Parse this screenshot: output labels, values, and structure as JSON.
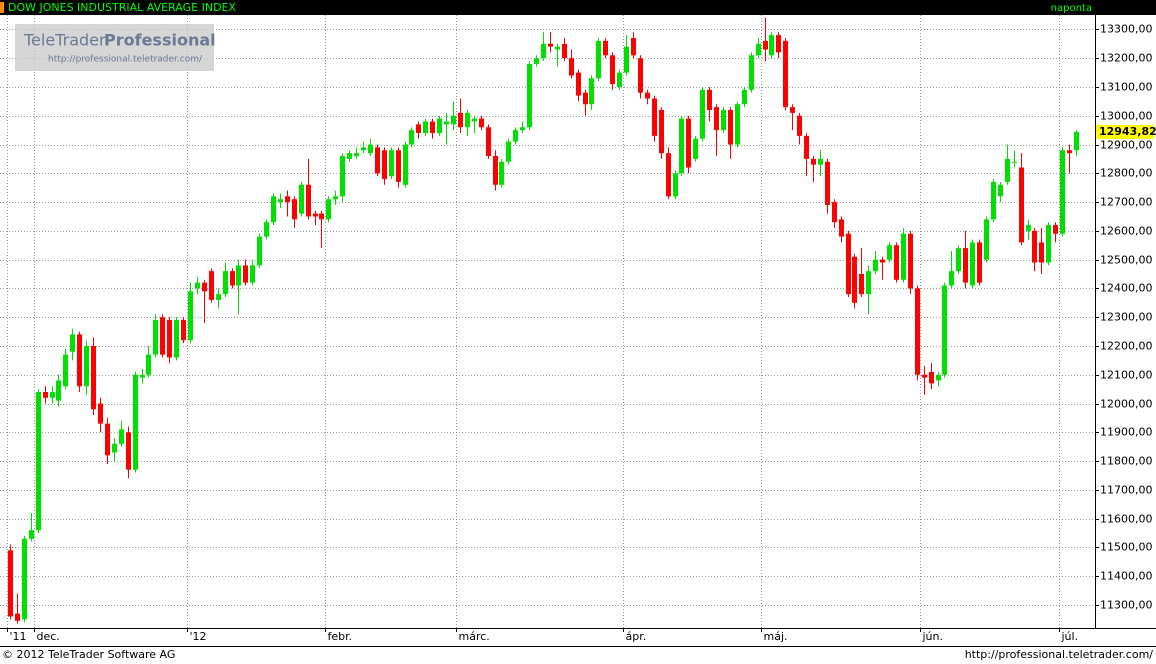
{
  "page": {
    "logo_brand": "TeleTrader",
    "logo_product": "Professional",
    "logo_url": "http://professional.teletrader.com/",
    "footer_left": "© 2012 TeleTrader Software AG",
    "footer_right": "http://professional.teletrader.com/"
  },
  "chart_data": {
    "type": "candlestick",
    "title": "DOW JONES INDUSTRIAL AVERAGE INDEX",
    "frequency": "naponta",
    "up_color": "#00e000",
    "down_color": "#ff0000",
    "grid": true,
    "ylim": [
      11220,
      13350
    ],
    "yticks": [
      {
        "value": 11300,
        "label": "11300,00"
      },
      {
        "value": 11400,
        "label": "11400,00"
      },
      {
        "value": 11500,
        "label": "11500,00"
      },
      {
        "value": 11600,
        "label": "11600,00"
      },
      {
        "value": 11700,
        "label": "11700,00"
      },
      {
        "value": 11800,
        "label": "11800,00"
      },
      {
        "value": 11900,
        "label": "11900,00"
      },
      {
        "value": 12000,
        "label": "12000,00"
      },
      {
        "value": 12100,
        "label": "12100,00"
      },
      {
        "value": 12200,
        "label": "12200,00"
      },
      {
        "value": 12300,
        "label": "12300,00"
      },
      {
        "value": 12400,
        "label": "12400,00"
      },
      {
        "value": 12500,
        "label": "12500,00"
      },
      {
        "value": 12600,
        "label": "12600,00"
      },
      {
        "value": 12700,
        "label": "12700,00"
      },
      {
        "value": 12800,
        "label": "12800,00"
      },
      {
        "value": 12900,
        "label": "12900,00"
      },
      {
        "value": 13000,
        "label": "13000,00"
      },
      {
        "value": 13100,
        "label": "13100,00"
      },
      {
        "value": 13200,
        "label": "13200,00"
      },
      {
        "value": 13300,
        "label": "13300,00"
      }
    ],
    "last_label": "12943,82",
    "categories": [
      "'11",
      null,
      null,
      null,
      "dec.",
      null,
      null,
      null,
      null,
      null,
      null,
      null,
      null,
      null,
      null,
      null,
      null,
      null,
      null,
      null,
      null,
      null,
      null,
      null,
      null,
      null,
      "'12",
      null,
      null,
      null,
      null,
      null,
      null,
      null,
      null,
      null,
      null,
      null,
      null,
      null,
      null,
      null,
      null,
      null,
      null,
      null,
      "febr.",
      null,
      null,
      null,
      null,
      null,
      null,
      null,
      null,
      null,
      null,
      null,
      null,
      null,
      null,
      null,
      null,
      null,
      null,
      "márc.",
      null,
      null,
      null,
      null,
      null,
      null,
      null,
      null,
      null,
      null,
      null,
      null,
      null,
      null,
      null,
      null,
      null,
      null,
      null,
      null,
      null,
      null,
      null,
      "ápr.",
      null,
      null,
      null,
      null,
      null,
      null,
      null,
      null,
      null,
      null,
      null,
      null,
      null,
      null,
      null,
      null,
      null,
      null,
      null,
      "máj.",
      null,
      null,
      null,
      null,
      null,
      null,
      null,
      null,
      null,
      null,
      null,
      null,
      null,
      null,
      null,
      null,
      null,
      null,
      null,
      null,
      null,
      null,
      "jún.",
      null,
      null,
      null,
      null,
      null,
      null,
      null,
      null,
      null,
      null,
      null,
      null,
      null,
      null,
      null,
      null,
      null,
      null,
      null,
      "júl.",
      null,
      null
    ],
    "candles": [
      [
        11490,
        11510,
        11250,
        11260
      ],
      [
        11270,
        11340,
        11235,
        11245
      ],
      [
        11250,
        11540,
        11240,
        11530
      ],
      [
        11530,
        11620,
        11520,
        11560
      ],
      [
        11560,
        12050,
        11550,
        12040
      ],
      [
        12040,
        12060,
        12000,
        12020
      ],
      [
        12020,
        12060,
        12000,
        12040
      ],
      [
        12010,
        12100,
        11990,
        12080
      ],
      [
        12060,
        12190,
        12050,
        12170
      ],
      [
        12180,
        12260,
        12150,
        12240
      ],
      [
        12240,
        12250,
        12040,
        12060
      ],
      [
        12060,
        12220,
        12030,
        12200
      ],
      [
        12200,
        12230,
        11960,
        11980
      ],
      [
        12000,
        12020,
        11900,
        11930
      ],
      [
        11930,
        11950,
        11790,
        11820
      ],
      [
        11830,
        11880,
        11800,
        11860
      ],
      [
        11860,
        11940,
        11850,
        11910
      ],
      [
        11900,
        11920,
        11740,
        11770
      ],
      [
        11770,
        12110,
        11760,
        12100
      ],
      [
        12090,
        12120,
        12070,
        12100
      ],
      [
        12100,
        12200,
        12090,
        12170
      ],
      [
        12170,
        12310,
        12160,
        12290
      ],
      [
        12300,
        12310,
        12160,
        12170
      ],
      [
        12290,
        12300,
        12140,
        12160
      ],
      [
        12160,
        12300,
        12150,
        12290
      ],
      [
        12290,
        12300,
        12210,
        12220
      ],
      [
        12220,
        12420,
        12210,
        12390
      ],
      [
        12400,
        12440,
        12380,
        12420
      ],
      [
        12420,
        12430,
        12280,
        12390
      ],
      [
        12460,
        12470,
        12350,
        12360
      ],
      [
        12360,
        12400,
        12330,
        12380
      ],
      [
        12380,
        12490,
        12370,
        12460
      ],
      [
        12460,
        12470,
        12400,
        12410
      ],
      [
        12410,
        12500,
        12310,
        12480
      ],
      [
        12480,
        12500,
        12410,
        12420
      ],
      [
        12420,
        12500,
        12410,
        12480
      ],
      [
        12480,
        12590,
        12470,
        12580
      ],
      [
        12580,
        12640,
        12570,
        12630
      ],
      [
        12630,
        12730,
        12620,
        12720
      ],
      [
        12700,
        12730,
        12680,
        12710
      ],
      [
        12720,
        12740,
        12650,
        12700
      ],
      [
        12710,
        12720,
        12610,
        12640
      ],
      [
        12660,
        12770,
        12650,
        12760
      ],
      [
        12760,
        12850,
        12640,
        12650
      ],
      [
        12660,
        12670,
        12620,
        12650
      ],
      [
        12660,
        12670,
        12540,
        12640
      ],
      [
        12640,
        12720,
        12630,
        12710
      ],
      [
        12710,
        12740,
        12690,
        12720
      ],
      [
        12720,
        12870,
        12700,
        12860
      ],
      [
        12850,
        12880,
        12840,
        12870
      ],
      [
        12860,
        12890,
        12850,
        12870
      ],
      [
        12880,
        12910,
        12870,
        12890
      ],
      [
        12870,
        12920,
        12860,
        12900
      ],
      [
        12890,
        12900,
        12790,
        12800
      ],
      [
        12880,
        12890,
        12760,
        12780
      ],
      [
        12790,
        12890,
        12780,
        12880
      ],
      [
        12880,
        12890,
        12750,
        12770
      ],
      [
        12760,
        12910,
        12750,
        12900
      ],
      [
        12900,
        12960,
        12890,
        12950
      ],
      [
        12970,
        12980,
        12920,
        12940
      ],
      [
        12940,
        12990,
        12930,
        12980
      ],
      [
        12980,
        12990,
        12920,
        12940
      ],
      [
        12940,
        13000,
        12930,
        12990
      ],
      [
        12970,
        13010,
        12900,
        12980
      ],
      [
        12970,
        13050,
        12950,
        13000
      ],
      [
        13010,
        13060,
        12940,
        12960
      ],
      [
        12960,
        13020,
        12930,
        13010
      ],
      [
        12980,
        13000,
        12940,
        12990
      ],
      [
        12990,
        13000,
        12950,
        12960
      ],
      [
        12960,
        12970,
        12850,
        12860
      ],
      [
        12860,
        12880,
        12740,
        12760
      ],
      [
        12760,
        12850,
        12750,
        12840
      ],
      [
        12840,
        12920,
        12830,
        12910
      ],
      [
        12910,
        12960,
        12900,
        12950
      ],
      [
        12950,
        12980,
        12940,
        12960
      ],
      [
        12960,
        13190,
        12950,
        13180
      ],
      [
        13180,
        13210,
        13170,
        13200
      ],
      [
        13200,
        13290,
        13190,
        13250
      ],
      [
        13250,
        13290,
        13220,
        13240
      ],
      [
        13230,
        13250,
        13170,
        13240
      ],
      [
        13250,
        13270,
        13190,
        13200
      ],
      [
        13200,
        13230,
        13130,
        13140
      ],
      [
        13150,
        13160,
        13050,
        13070
      ],
      [
        13080,
        13090,
        13000,
        13040
      ],
      [
        13040,
        13140,
        13020,
        13130
      ],
      [
        13130,
        13270,
        13120,
        13260
      ],
      [
        13260,
        13270,
        13200,
        13210
      ],
      [
        13210,
        13220,
        13090,
        13110
      ],
      [
        13100,
        13160,
        13090,
        13150
      ],
      [
        13150,
        13280,
        13140,
        13240
      ],
      [
        13270,
        13290,
        13200,
        13210
      ],
      [
        13200,
        13210,
        13060,
        13080
      ],
      [
        13080,
        13090,
        13040,
        13060
      ],
      [
        13060,
        13070,
        12910,
        12930
      ],
      [
        13020,
        13030,
        12850,
        12870
      ],
      [
        12870,
        12890,
        12710,
        12720
      ],
      [
        12720,
        12810,
        12710,
        12800
      ],
      [
        12800,
        13000,
        12790,
        12990
      ],
      [
        12990,
        13000,
        12800,
        12820
      ],
      [
        12850,
        12930,
        12840,
        12920
      ],
      [
        12920,
        13100,
        12910,
        13090
      ],
      [
        13090,
        13100,
        12980,
        13020
      ],
      [
        13030,
        13040,
        12860,
        12950
      ],
      [
        12950,
        13030,
        12940,
        13020
      ],
      [
        13020,
        13030,
        12850,
        12900
      ],
      [
        12900,
        13050,
        12890,
        13040
      ],
      [
        13040,
        13100,
        13030,
        13090
      ],
      [
        13090,
        13220,
        13080,
        13210
      ],
      [
        13210,
        13270,
        13200,
        13250
      ],
      [
        13260,
        13340,
        13190,
        13230
      ],
      [
        13210,
        13290,
        13200,
        13280
      ],
      [
        13280,
        13290,
        13200,
        13220
      ],
      [
        13260,
        13270,
        13020,
        13030
      ],
      [
        13030,
        13040,
        12950,
        13010
      ],
      [
        13000,
        13010,
        12900,
        12930
      ],
      [
        12930,
        12940,
        12790,
        12850
      ],
      [
        12850,
        12860,
        12770,
        12830
      ],
      [
        12830,
        12880,
        12790,
        12850
      ],
      [
        12840,
        12850,
        12660,
        12690
      ],
      [
        12700,
        12710,
        12610,
        12630
      ],
      [
        12640,
        12650,
        12560,
        12580
      ],
      [
        12590,
        12600,
        12370,
        12380
      ],
      [
        12510,
        12520,
        12330,
        12350
      ],
      [
        12450,
        12540,
        12370,
        12380
      ],
      [
        12380,
        12480,
        12310,
        12460
      ],
      [
        12460,
        12530,
        12450,
        12500
      ],
      [
        12500,
        12510,
        12430,
        12490
      ],
      [
        12500,
        12560,
        12490,
        12550
      ],
      [
        12550,
        12560,
        12420,
        12430
      ],
      [
        12430,
        12610,
        12420,
        12590
      ],
      [
        12590,
        12600,
        12380,
        12400
      ],
      [
        12400,
        12410,
        12080,
        12100
      ],
      [
        12100,
        12130,
        12030,
        12090
      ],
      [
        12110,
        12140,
        12050,
        12070
      ],
      [
        12080,
        12110,
        12060,
        12100
      ],
      [
        12100,
        12420,
        12090,
        12410
      ],
      [
        12410,
        12530,
        12400,
        12460
      ],
      [
        12460,
        12550,
        12450,
        12540
      ],
      [
        12540,
        12600,
        12400,
        12420
      ],
      [
        12410,
        12570,
        12400,
        12560
      ],
      [
        12560,
        12570,
        12410,
        12420
      ],
      [
        12500,
        12650,
        12490,
        12640
      ],
      [
        12640,
        12780,
        12630,
        12770
      ],
      [
        12720,
        12770,
        12700,
        12760
      ],
      [
        12770,
        12900,
        12760,
        12850
      ],
      [
        12840,
        12880,
        12820,
        12840
      ],
      [
        12820,
        12870,
        12550,
        12560
      ],
      [
        12600,
        12640,
        12570,
        12620
      ],
      [
        12600,
        12610,
        12460,
        12490
      ],
      [
        12560,
        12610,
        12450,
        12490
      ],
      [
        12490,
        12630,
        12480,
        12620
      ],
      [
        12620,
        12630,
        12560,
        12590
      ],
      [
        12590,
        12890,
        12580,
        12880
      ],
      [
        12880,
        12900,
        12800,
        12870
      ],
      [
        12880,
        12950,
        12860,
        12943.82
      ]
    ]
  }
}
